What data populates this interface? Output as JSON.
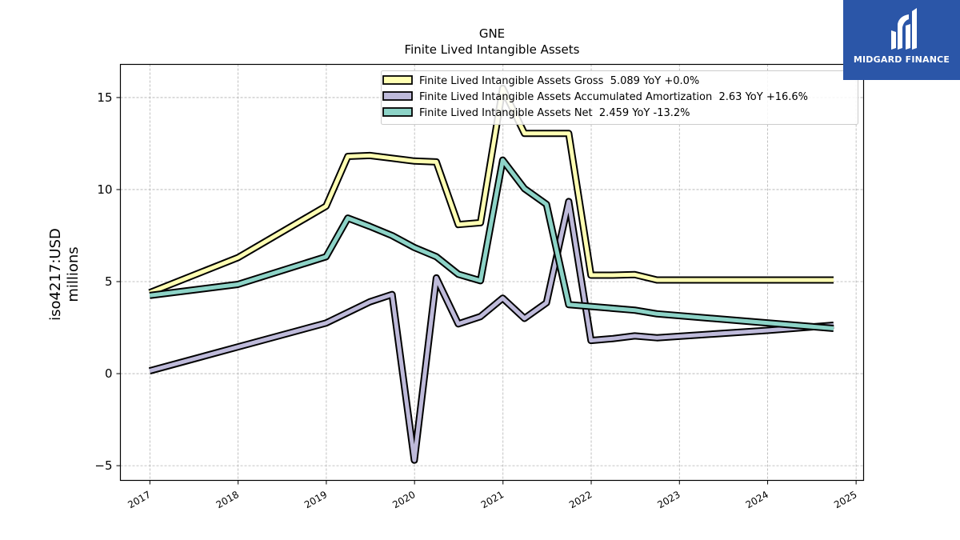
{
  "chart_data": {
    "type": "line",
    "title": "GNE",
    "subtitle": "Finite Lived Intangible Assets",
    "ylabel": "iso4217:USD",
    "ylabel2": "millions",
    "xlim": [
      "2016-09-01",
      "2025-02-01"
    ],
    "ylim": [
      -5.8,
      16.8
    ],
    "yticks": [
      -5,
      0,
      5,
      10,
      15
    ],
    "yticklabels": [
      "−5",
      "0",
      "5",
      "10",
      "15"
    ],
    "xticks": [
      "2017-01-01",
      "2018-01-01",
      "2019-01-01",
      "2020-01-01",
      "2021-01-01",
      "2022-01-01",
      "2023-01-01",
      "2024-01-01",
      "2025-01-01"
    ],
    "xticklabels": [
      "2017",
      "2018",
      "2019",
      "2020",
      "2021",
      "2022",
      "2023",
      "2024",
      "2025"
    ],
    "grid": true,
    "legend_position": "top-right",
    "series": [
      {
        "name": "Finite Lived Intangible Assets Gross  5.089 YoY +0.0%",
        "color": "#ffffb3",
        "points": [
          [
            "2016-12-31",
            4.4
          ],
          [
            "2017-12-31",
            6.3
          ],
          [
            "2018-12-31",
            9.1
          ],
          [
            "2019-03-31",
            11.8
          ],
          [
            "2019-06-30",
            11.85
          ],
          [
            "2019-09-30",
            11.7
          ],
          [
            "2019-12-31",
            11.55
          ],
          [
            "2020-03-31",
            11.5
          ],
          [
            "2020-06-30",
            8.1
          ],
          [
            "2020-09-30",
            8.2
          ],
          [
            "2020-12-31",
            15.5
          ],
          [
            "2021-03-31",
            13.05
          ],
          [
            "2021-06-30",
            13.05
          ],
          [
            "2021-09-30",
            13.05
          ],
          [
            "2021-12-31",
            5.35
          ],
          [
            "2022-03-31",
            5.35
          ],
          [
            "2022-06-30",
            5.38
          ],
          [
            "2022-09-30",
            5.089
          ],
          [
            "2024-09-30",
            5.089
          ]
        ]
      },
      {
        "name": "Finite Lived Intangible Assets Accumulated Amortization  2.63 YoY +16.6%",
        "color": "#bebada",
        "points": [
          [
            "2016-12-31",
            0.15
          ],
          [
            "2017-12-31",
            1.45
          ],
          [
            "2018-12-31",
            2.75
          ],
          [
            "2019-06-30",
            3.9
          ],
          [
            "2019-09-30",
            4.3
          ],
          [
            "2019-12-31",
            -4.7
          ],
          [
            "2020-03-31",
            5.2
          ],
          [
            "2020-06-30",
            2.7
          ],
          [
            "2020-09-30",
            3.1
          ],
          [
            "2020-12-31",
            4.1
          ],
          [
            "2021-03-31",
            3.0
          ],
          [
            "2021-06-30",
            3.85
          ],
          [
            "2021-09-30",
            9.35
          ],
          [
            "2021-12-31",
            1.8
          ],
          [
            "2022-03-31",
            1.9
          ],
          [
            "2022-06-30",
            2.05
          ],
          [
            "2022-09-30",
            1.95
          ],
          [
            "2023-12-31",
            2.35
          ],
          [
            "2024-09-30",
            2.63
          ]
        ]
      },
      {
        "name": "Finite Lived Intangible Assets Net  2.459 YoY -13.2%",
        "color": "#8dd3c7",
        "points": [
          [
            "2016-12-31",
            4.25
          ],
          [
            "2017-12-31",
            4.85
          ],
          [
            "2018-12-31",
            6.35
          ],
          [
            "2019-03-31",
            8.45
          ],
          [
            "2019-06-30",
            8.0
          ],
          [
            "2019-09-30",
            7.5
          ],
          [
            "2019-12-31",
            6.85
          ],
          [
            "2020-03-31",
            6.35
          ],
          [
            "2020-06-30",
            5.4
          ],
          [
            "2020-09-30",
            5.05
          ],
          [
            "2020-12-31",
            11.6
          ],
          [
            "2021-03-31",
            10.05
          ],
          [
            "2021-06-30",
            9.2
          ],
          [
            "2021-09-30",
            3.75
          ],
          [
            "2022-06-30",
            3.45
          ],
          [
            "2022-09-30",
            3.25
          ],
          [
            "2024-09-30",
            2.459
          ]
        ]
      }
    ]
  },
  "logo": {
    "text": "MIDGARD FINANCE",
    "color": "#2b56a8"
  }
}
